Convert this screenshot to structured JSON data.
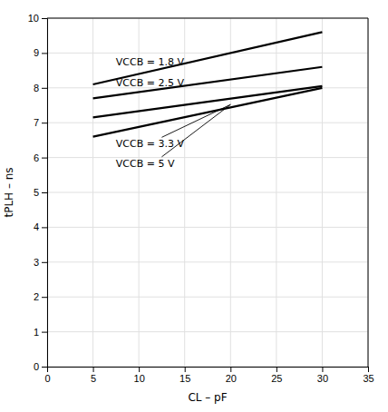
{
  "chart_data": {
    "type": "line",
    "x_label": "CL – pF",
    "y_label": "tPLH – ns",
    "x": [
      5,
      30
    ],
    "series": [
      {
        "values": [
          8.1,
          9.6
        ]
      },
      {
        "values": [
          7.7,
          8.6
        ]
      },
      {
        "values": [
          7.15,
          8.05
        ]
      },
      {
        "values": [
          6.6,
          8.0
        ]
      }
    ],
    "color": "#000000",
    "xlim": [
      0,
      35
    ],
    "ylim": [
      0,
      10
    ],
    "xticks": [
      0,
      5,
      10,
      15,
      20,
      25,
      30,
      35
    ],
    "yticks": [
      0,
      1,
      2,
      3,
      4,
      5,
      6,
      7,
      8,
      9,
      10
    ],
    "grid": true,
    "annotations": [
      {
        "text": "VCCB = 1.8 V",
        "x": 7.5,
        "y": 8.72
      },
      {
        "text": "VCCB = 2.5 V",
        "x": 7.5,
        "y": 8.12
      },
      {
        "text": "VCCB = 3.3 V",
        "x": 7.5,
        "y": 6.38
      },
      {
        "text": "VCCB = 5 V",
        "x": 7.5,
        "y": 5.82
      }
    ],
    "pointer_lines": [
      {
        "x": [
          20.0,
          12.5
        ],
        "y": [
          7.52,
          6.58
        ]
      },
      {
        "x": [
          20.0,
          12.5
        ],
        "y": [
          7.52,
          6.02
        ]
      }
    ]
  }
}
